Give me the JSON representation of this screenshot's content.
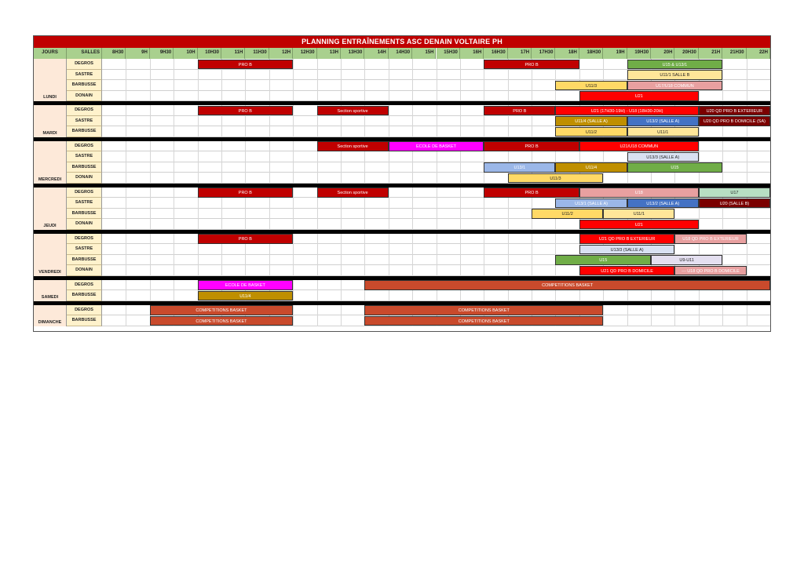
{
  "title": "PLANNING ENTRAÎNEMENTS ASC DENAIN VOLTAIRE PH",
  "header": {
    "jours": "JOURS",
    "salles": "SALLES",
    "times": [
      "8H30",
      "9H",
      "9H30",
      "10H",
      "10H30",
      "11H",
      "11H30",
      "12H",
      "12H30",
      "13H",
      "13H30",
      "14H",
      "14H30",
      "15H",
      "15H30",
      "16H",
      "16H30",
      "17H",
      "17H30",
      "18H",
      "18H30",
      "19H",
      "19H30",
      "20H",
      "20H30",
      "21H",
      "21H30",
      "22H"
    ]
  },
  "colors": {
    "title_bg": "#c00000",
    "header_bg": "#a9d08e",
    "day_bg": "#fde9d9",
    "salle_bg": "#fff2cc"
  },
  "days": [
    {
      "name": "LUNDI",
      "rows": [
        {
          "salle": "DEGROS",
          "events": [
            {
              "label": "PRO B",
              "start": "10H",
              "end": "12H",
              "color": "#c00000",
              "text": "#ffffff"
            },
            {
              "label": "PRO B",
              "start": "16H",
              "end": "18H",
              "color": "#c00000",
              "text": "#ffffff"
            },
            {
              "label": "U15 & U13/1",
              "start": "19H",
              "end": "21H",
              "color": "#70ad47",
              "text": "#ffffff"
            }
          ]
        },
        {
          "salle": "SASTRE",
          "events": [
            {
              "label": "U11/1 SALLE B",
              "start": "19H",
              "end": "21H",
              "color": "#ffe699",
              "text": "#222222"
            }
          ]
        },
        {
          "salle": "BARBUSSE",
          "events": [
            {
              "label": "U11/3",
              "start": "17H30",
              "end": "19H",
              "color": "#ffd966",
              "text": "#222222"
            },
            {
              "label": "U17/U18 COMMUN",
              "start": "19H",
              "end": "21H",
              "color": "#e8a0a0",
              "text": "#ffffff"
            }
          ]
        },
        {
          "salle": "DONAIN",
          "events": [
            {
              "label": "U21",
              "start": "18H",
              "end": "20H30",
              "color": "#ff0000",
              "text": "#ffffff"
            }
          ]
        }
      ]
    },
    {
      "name": "MARDI",
      "rows": [
        {
          "salle": "DEGROS",
          "events": [
            {
              "label": "PRO B",
              "start": "10H",
              "end": "12H",
              "color": "#c00000",
              "text": "#ffffff"
            },
            {
              "label": "Section sportive",
              "start": "12H30",
              "end": "14H",
              "color": "#c00000",
              "text": "#ffffff"
            },
            {
              "label": "PRO B",
              "start": "16H",
              "end": "17H30",
              "color": "#c00000",
              "text": "#ffffff"
            },
            {
              "label": "U21 (17H30-19H) - U18 (18H30-20H)",
              "start": "17H30",
              "end": "20H30",
              "color": "#ff0000",
              "text": "#ffffff"
            },
            {
              "label": "U20 QD PRO B EXTERIEUR",
              "start": "20H30",
              "end": "22H",
              "color": "#7b0000",
              "text": "#ffffff"
            }
          ]
        },
        {
          "salle": "SASTRE",
          "events": [
            {
              "label": "U11/4 (SALLE A)",
              "start": "17H30",
              "end": "19H",
              "color": "#bf8f00",
              "text": "#ffffff"
            },
            {
              "label": "U13/2 (SALLE A)",
              "start": "19H",
              "end": "20H30",
              "color": "#4472c4",
              "text": "#ffffff"
            },
            {
              "label": "U20 QD PRO B DOMICILE (SA)",
              "start": "20H30",
              "end": "22H",
              "color": "#7b0000",
              "text": "#ffffff"
            }
          ]
        },
        {
          "salle": "BARBUSSE",
          "events": [
            {
              "label": "U11/2",
              "start": "17H30",
              "end": "19H",
              "color": "#ffd966",
              "text": "#222222"
            },
            {
              "label": "U11/1",
              "start": "19H",
              "end": "20H30",
              "color": "#ffe699",
              "text": "#222222"
            }
          ]
        }
      ]
    },
    {
      "name": "MERCREDI",
      "rows": [
        {
          "salle": "DEGROS",
          "events": [
            {
              "label": "Section sportive",
              "start": "12H30",
              "end": "14H",
              "color": "#c00000",
              "text": "#ffffff"
            },
            {
              "label": "ECOLE DE BASKET",
              "start": "14H",
              "end": "16H",
              "color": "#ff00ff",
              "text": "#ffffff"
            },
            {
              "label": "PRO B",
              "start": "16H",
              "end": "18H",
              "color": "#c00000",
              "text": "#ffffff"
            },
            {
              "label": "U21/U18 COMMUN",
              "start": "18H",
              "end": "20H30",
              "color": "#ff0000",
              "text": "#ffffff"
            }
          ]
        },
        {
          "salle": "SASTRE",
          "events": [
            {
              "label": "U13/3 (SALLE A)",
              "start": "19H",
              "end": "20H30",
              "color": "#d9e1f2",
              "text": "#222222"
            }
          ]
        },
        {
          "salle": "BARBUSSE",
          "events": [
            {
              "label": "U13/1",
              "start": "16H",
              "end": "17H30",
              "color": "#9bb7e8",
              "text": "#ffffff"
            },
            {
              "label": "U11/4",
              "start": "17H30",
              "end": "19H",
              "color": "#bf8f00",
              "text": "#ffffff"
            },
            {
              "label": "U15",
              "start": "19H",
              "end": "21H",
              "color": "#70ad47",
              "text": "#ffffff"
            }
          ]
        },
        {
          "salle": "DONAIN",
          "events": [
            {
              "label": "U11/3",
              "start": "16H30",
              "end": "18H30",
              "color": "#ffd966",
              "text": "#222222"
            }
          ]
        }
      ]
    },
    {
      "name": "JEUDI",
      "rows": [
        {
          "salle": "DEGROS",
          "events": [
            {
              "label": "PRO B",
              "start": "10H",
              "end": "12H",
              "color": "#c00000",
              "text": "#ffffff"
            },
            {
              "label": "Section sportive",
              "start": "12H30",
              "end": "14H",
              "color": "#c00000",
              "text": "#ffffff"
            },
            {
              "label": "PRO B",
              "start": "16H",
              "end": "18H",
              "color": "#c00000",
              "text": "#ffffff"
            },
            {
              "label": "U18",
              "start": "18H",
              "end": "20H30",
              "color": "#e8a0a0",
              "text": "#ffffff"
            },
            {
              "label": "U17",
              "start": "20H30",
              "end": "22H",
              "color": "#b7dfc3",
              "text": "#222222"
            }
          ]
        },
        {
          "salle": "SASTRE",
          "events": [
            {
              "label": "U13/1 (SALLE A)",
              "start": "17H30",
              "end": "19H",
              "color": "#9bb7e8",
              "text": "#ffffff"
            },
            {
              "label": "U13/2 (SALLE A)",
              "start": "19H",
              "end": "20H30",
              "color": "#4472c4",
              "text": "#ffffff"
            },
            {
              "label": "U20 (SALLE B)",
              "start": "20H30",
              "end": "22H",
              "color": "#7b0000",
              "text": "#ffffff"
            }
          ]
        },
        {
          "salle": "BARBUSSE",
          "events": [
            {
              "label": "U11/2",
              "start": "17H",
              "end": "18H30",
              "color": "#ffd966",
              "text": "#222222"
            },
            {
              "label": "U11/1",
              "start": "18H30",
              "end": "20H",
              "color": "#ffe699",
              "text": "#222222"
            }
          ]
        },
        {
          "salle": "DONAIN",
          "events": [
            {
              "label": "U21",
              "start": "18H",
              "end": "20H30",
              "color": "#ff0000",
              "text": "#ffffff"
            }
          ]
        }
      ]
    },
    {
      "name": "VENDREDI",
      "rows": [
        {
          "salle": "DEGROS",
          "events": [
            {
              "label": "PRO B",
              "start": "10H",
              "end": "12H",
              "color": "#c00000",
              "text": "#ffffff"
            },
            {
              "label": "U21 QD PRO B EXTERIEUR",
              "start": "18H",
              "end": "20H",
              "color": "#ff0000",
              "text": "#ffffff"
            },
            {
              "label": "U18 QD PRO B EXTERIEUR",
              "start": "20H",
              "end": "21H30",
              "color": "#e8a0a0",
              "text": "#ffffff"
            }
          ]
        },
        {
          "salle": "SASTRE",
          "events": [
            {
              "label": "U13/3 (SALLE A)",
              "start": "18H",
              "end": "20H",
              "color": "#d9e1f2",
              "text": "#222222"
            }
          ]
        },
        {
          "salle": "BARBUSSE",
          "events": [
            {
              "label": "U15",
              "start": "17H30",
              "end": "19H30",
              "color": "#70ad47",
              "text": "#ffffff"
            },
            {
              "label": "U9-U11",
              "start": "19H30",
              "end": "21H",
              "color": "#e4dff0",
              "text": "#222222"
            }
          ]
        },
        {
          "salle": "DONAIN",
          "events": [
            {
              "label": "U21 QD PRO B DOMICILE",
              "start": "18H",
              "end": "20H",
              "color": "#ff0000",
              "text": "#ffffff"
            },
            {
              "label": "--- U18 QD PRO B DOMICILE",
              "start": "20H",
              "end": "21H30",
              "color": "#e8a0a0",
              "text": "#ffffff"
            }
          ]
        }
      ]
    },
    {
      "name": "SAMEDI",
      "rows": [
        {
          "salle": "DEGROS",
          "events": [
            {
              "label": "ECOLE DE BASKET",
              "start": "10H",
              "end": "12H",
              "color": "#ff00ff",
              "text": "#ffffff"
            },
            {
              "label": "COMPETITIONS BASKET",
              "start": "13H30",
              "end": "22H",
              "color": "#c94a2c",
              "text": "#ffffff"
            }
          ]
        },
        {
          "salle": "BARBUSSE",
          "events": [
            {
              "label": "U11/4",
              "start": "10H",
              "end": "12H",
              "color": "#bf8f00",
              "text": "#ffffff"
            }
          ]
        }
      ]
    },
    {
      "name": "DIMANCHE",
      "rows": [
        {
          "salle": "DEGROS",
          "events": [
            {
              "label": "COMPETITIONS BASKET",
              "start": "9H",
              "end": "12H",
              "color": "#c94a2c",
              "text": "#ffffff"
            },
            {
              "label": "COMPETITIONS BASKET",
              "start": "13H30",
              "end": "18H30",
              "color": "#c94a2c",
              "text": "#ffffff"
            }
          ]
        },
        {
          "salle": "BARBUSSE",
          "events": [
            {
              "label": "COMPETITIONS BASKET",
              "start": "9H",
              "end": "12H",
              "color": "#c94a2c",
              "text": "#ffffff"
            },
            {
              "label": "COMPETITIONS BASKET",
              "start": "13H30",
              "end": "18H30",
              "color": "#c94a2c",
              "text": "#ffffff"
            }
          ]
        }
      ]
    }
  ]
}
